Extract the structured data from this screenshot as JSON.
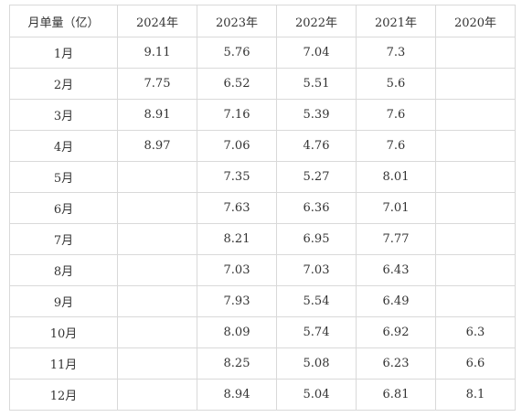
{
  "table": {
    "headers": [
      "月单量（亿）",
      "2024年",
      "2023年",
      "2022年",
      "2021年",
      "2020年"
    ],
    "rows": [
      [
        "1月",
        "9.11",
        "5.76",
        "7.04",
        "7.3",
        ""
      ],
      [
        "2月",
        "7.75",
        "6.52",
        "5.51",
        "5.6",
        ""
      ],
      [
        "3月",
        "8.91",
        "7.16",
        "5.39",
        "7.6",
        ""
      ],
      [
        "4月",
        "8.97",
        "7.06",
        "4.76",
        "7.6",
        ""
      ],
      [
        "5月",
        "",
        "7.35",
        "5.27",
        "8.01",
        ""
      ],
      [
        "6月",
        "",
        "7.63",
        "6.36",
        "7.01",
        ""
      ],
      [
        "7月",
        "",
        "8.21",
        "6.95",
        "7.77",
        ""
      ],
      [
        "8月",
        "",
        "7.03",
        "7.03",
        "6.43",
        ""
      ],
      [
        "9月",
        "",
        "7.93",
        "5.54",
        "6.49",
        ""
      ],
      [
        "10月",
        "",
        "8.09",
        "5.74",
        "6.92",
        "6.3"
      ],
      [
        "11月",
        "",
        "8.25",
        "5.08",
        "6.23",
        "6.6"
      ],
      [
        "12月",
        "",
        "8.94",
        "5.04",
        "6.81",
        "8.1"
      ]
    ]
  },
  "colors": {
    "border": "#d9d9d9",
    "text": "#333333",
    "background": "#ffffff"
  }
}
